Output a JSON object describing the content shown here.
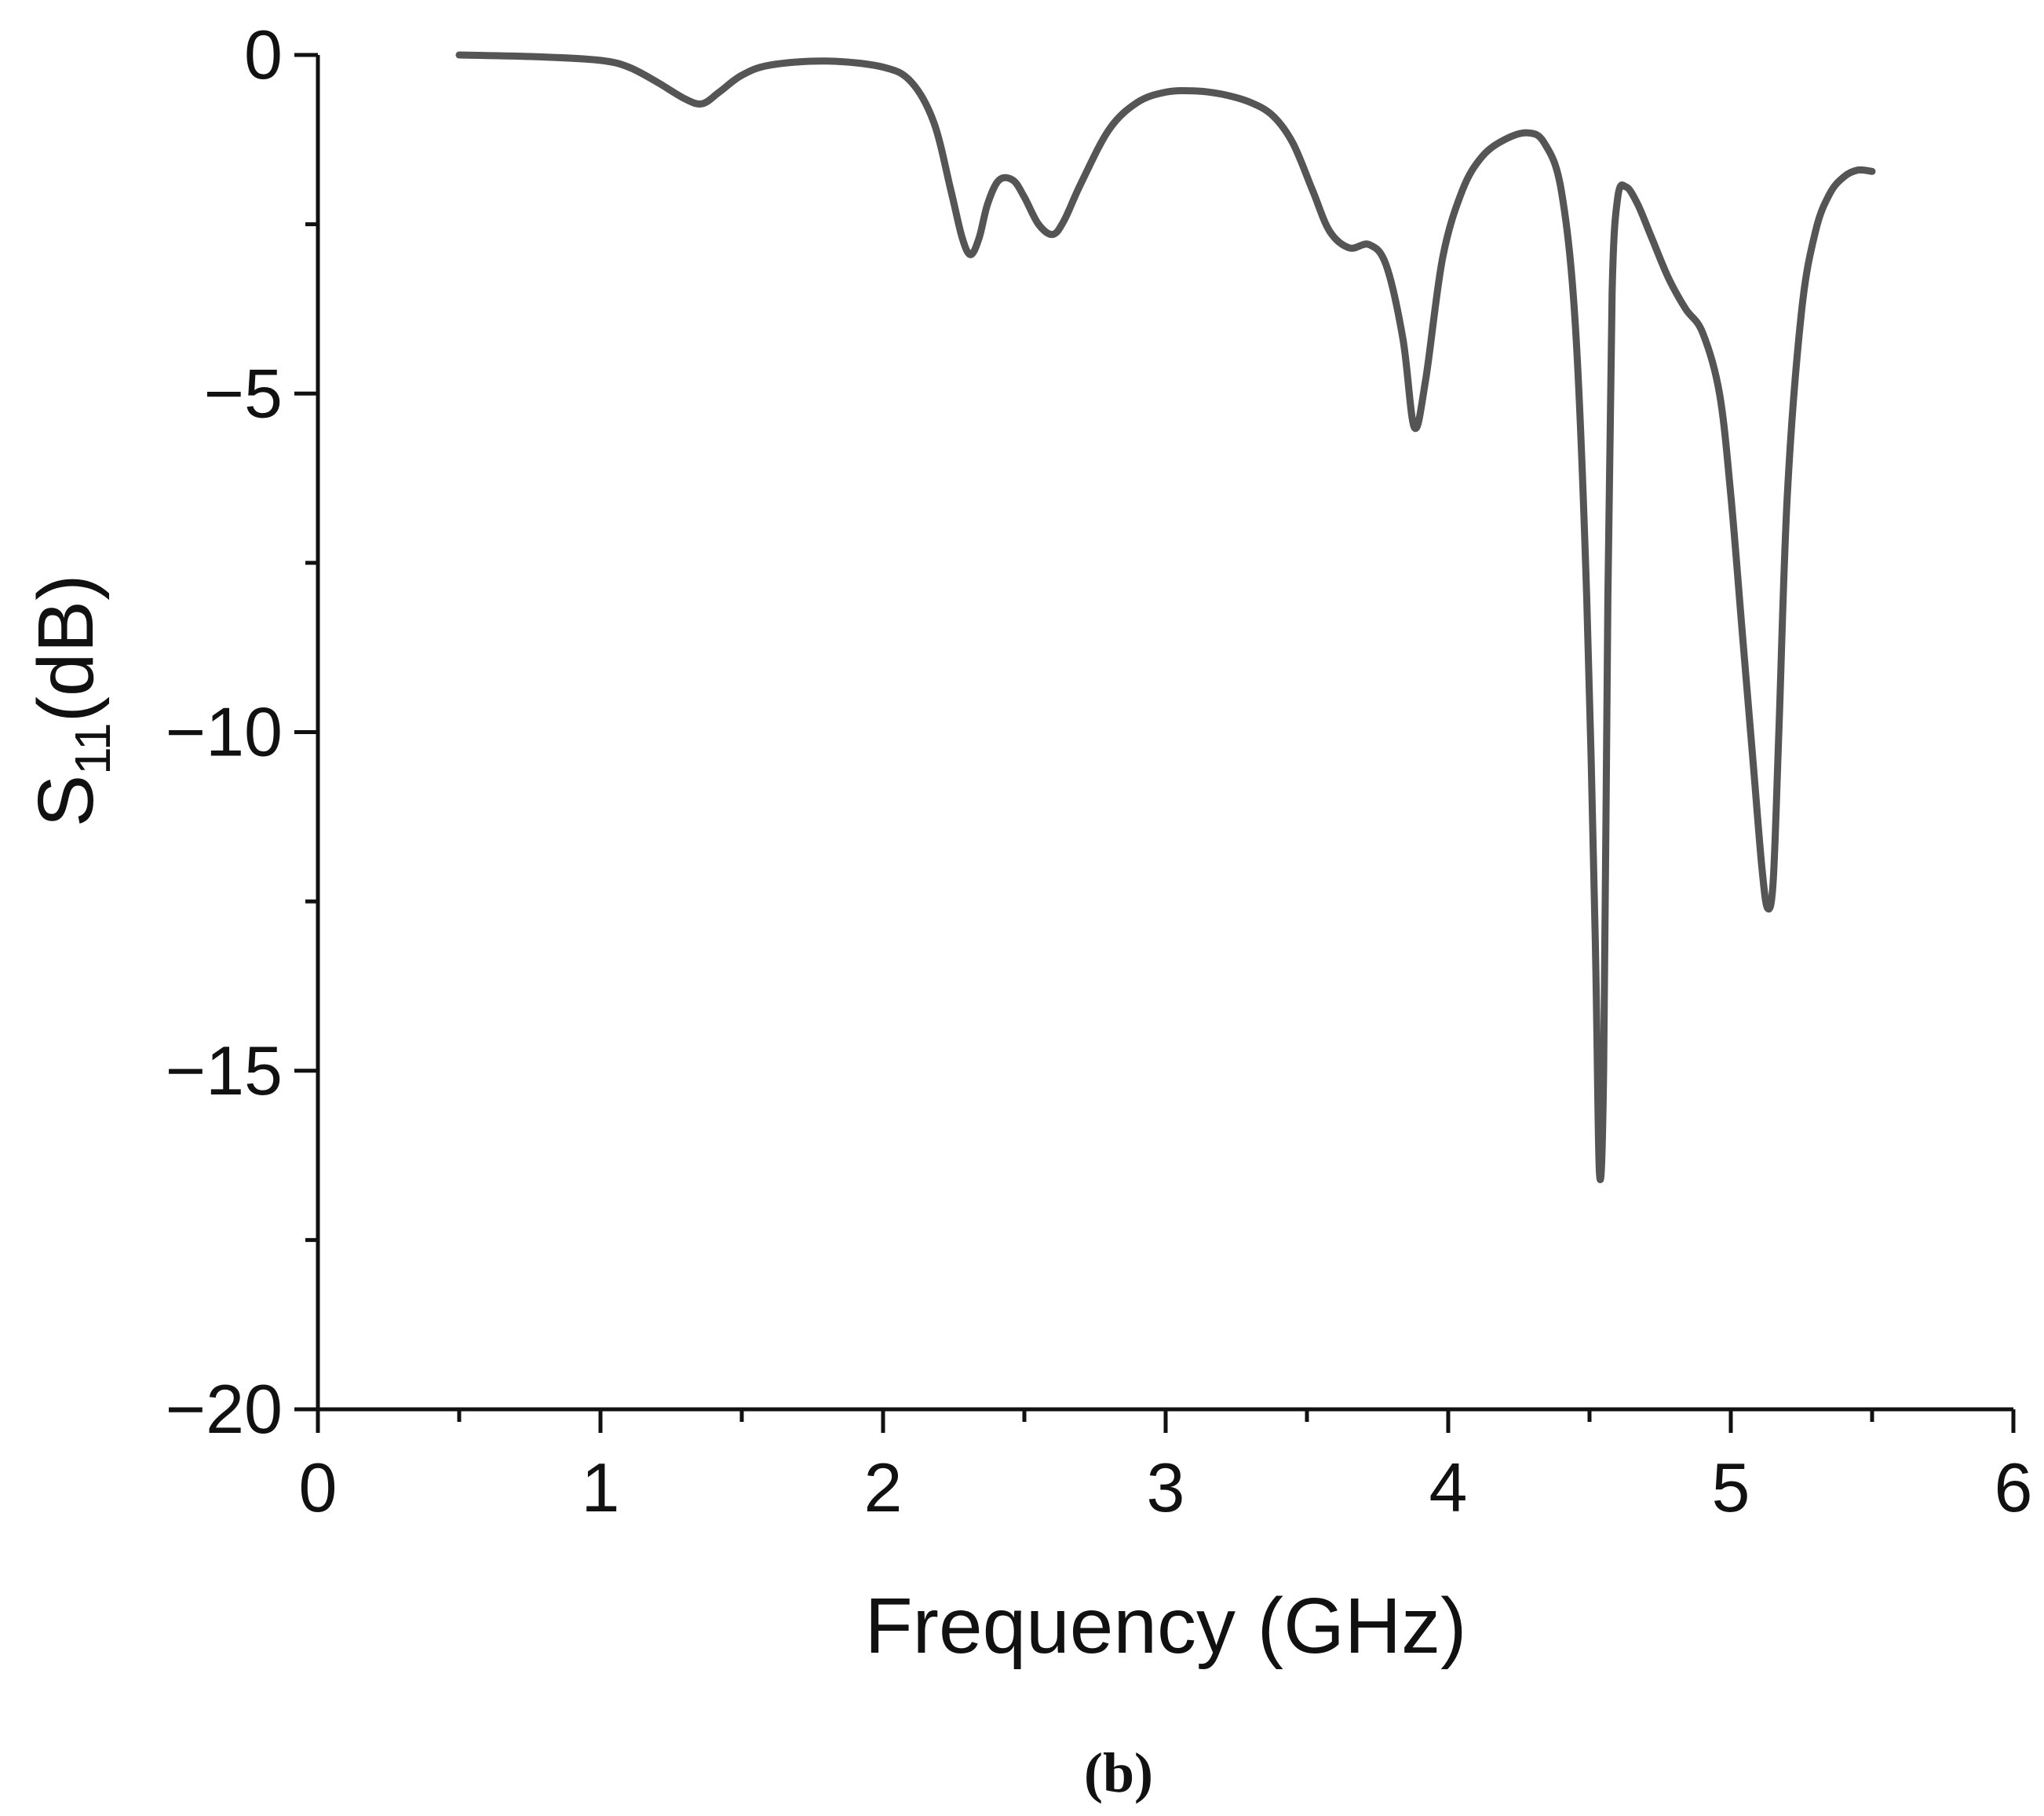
{
  "chart_data": {
    "type": "line",
    "xlabel": "Frequency (GHz)",
    "ylabel_main": "S",
    "ylabel_sub": "11",
    "ylabel_unit": "(dB)",
    "caption": "(b)",
    "xlim": [
      0,
      6
    ],
    "ylim": [
      -20,
      0
    ],
    "x_ticks": [
      0,
      1,
      2,
      3,
      4,
      5,
      6
    ],
    "x_minor_ticks": [
      0.5,
      1.5,
      2.5,
      3.5,
      4.5,
      5.5
    ],
    "y_ticks": [
      0,
      -5,
      -10,
      -15,
      -20
    ],
    "y_tick_labels": [
      "0",
      "−5",
      "−10",
      "−15",
      "−20"
    ],
    "y_minor_ticks": [
      -2.5,
      -7.5,
      -12.5,
      -17.5
    ],
    "grid": false,
    "legend": "none",
    "line_color": "#555555",
    "series": [
      {
        "x": [
          0.5,
          0.8,
          1.0,
          1.1,
          1.2,
          1.3,
          1.36,
          1.42,
          1.5,
          1.6,
          1.8,
          2.0,
          2.1,
          2.18,
          2.24,
          2.28,
          2.31,
          2.34,
          2.37,
          2.41,
          2.46,
          2.5,
          2.55,
          2.6,
          2.64,
          2.7,
          2.8,
          2.9,
          3.0,
          3.1,
          3.2,
          3.3,
          3.38,
          3.45,
          3.52,
          3.58,
          3.65,
          3.72,
          3.78,
          3.84,
          3.88,
          3.92,
          3.98,
          4.05,
          4.12,
          4.2,
          4.28,
          4.34,
          4.4,
          4.45,
          4.49,
          4.52,
          4.535,
          4.55,
          4.565,
          4.58,
          4.6,
          4.63,
          4.67,
          4.72,
          4.78,
          4.84,
          4.9,
          4.96,
          5.0,
          5.04,
          5.08,
          5.11,
          5.13,
          5.15,
          5.17,
          5.2,
          5.25,
          5.3,
          5.35,
          5.4,
          5.45,
          5.5
        ],
        "y": [
          0.0,
          -0.03,
          -0.08,
          -0.18,
          -0.4,
          -0.65,
          -0.72,
          -0.55,
          -0.3,
          -0.15,
          -0.09,
          -0.18,
          -0.4,
          -1.0,
          -2.0,
          -2.7,
          -2.95,
          -2.7,
          -2.2,
          -1.85,
          -1.85,
          -2.1,
          -2.5,
          -2.65,
          -2.45,
          -1.9,
          -1.1,
          -0.7,
          -0.55,
          -0.53,
          -0.58,
          -0.7,
          -0.9,
          -1.3,
          -2.0,
          -2.6,
          -2.85,
          -2.8,
          -3.1,
          -4.2,
          -5.5,
          -4.8,
          -3.0,
          -2.0,
          -1.5,
          -1.25,
          -1.15,
          -1.3,
          -2.0,
          -4.0,
          -8.0,
          -13.0,
          -16.5,
          -15.0,
          -8.0,
          -3.5,
          -2.1,
          -1.95,
          -2.2,
          -2.7,
          -3.3,
          -3.75,
          -4.1,
          -5.0,
          -6.5,
          -8.5,
          -10.5,
          -12.0,
          -12.6,
          -12.2,
          -10.0,
          -6.5,
          -3.8,
          -2.6,
          -2.05,
          -1.8,
          -1.7,
          -1.72
        ]
      }
    ]
  }
}
